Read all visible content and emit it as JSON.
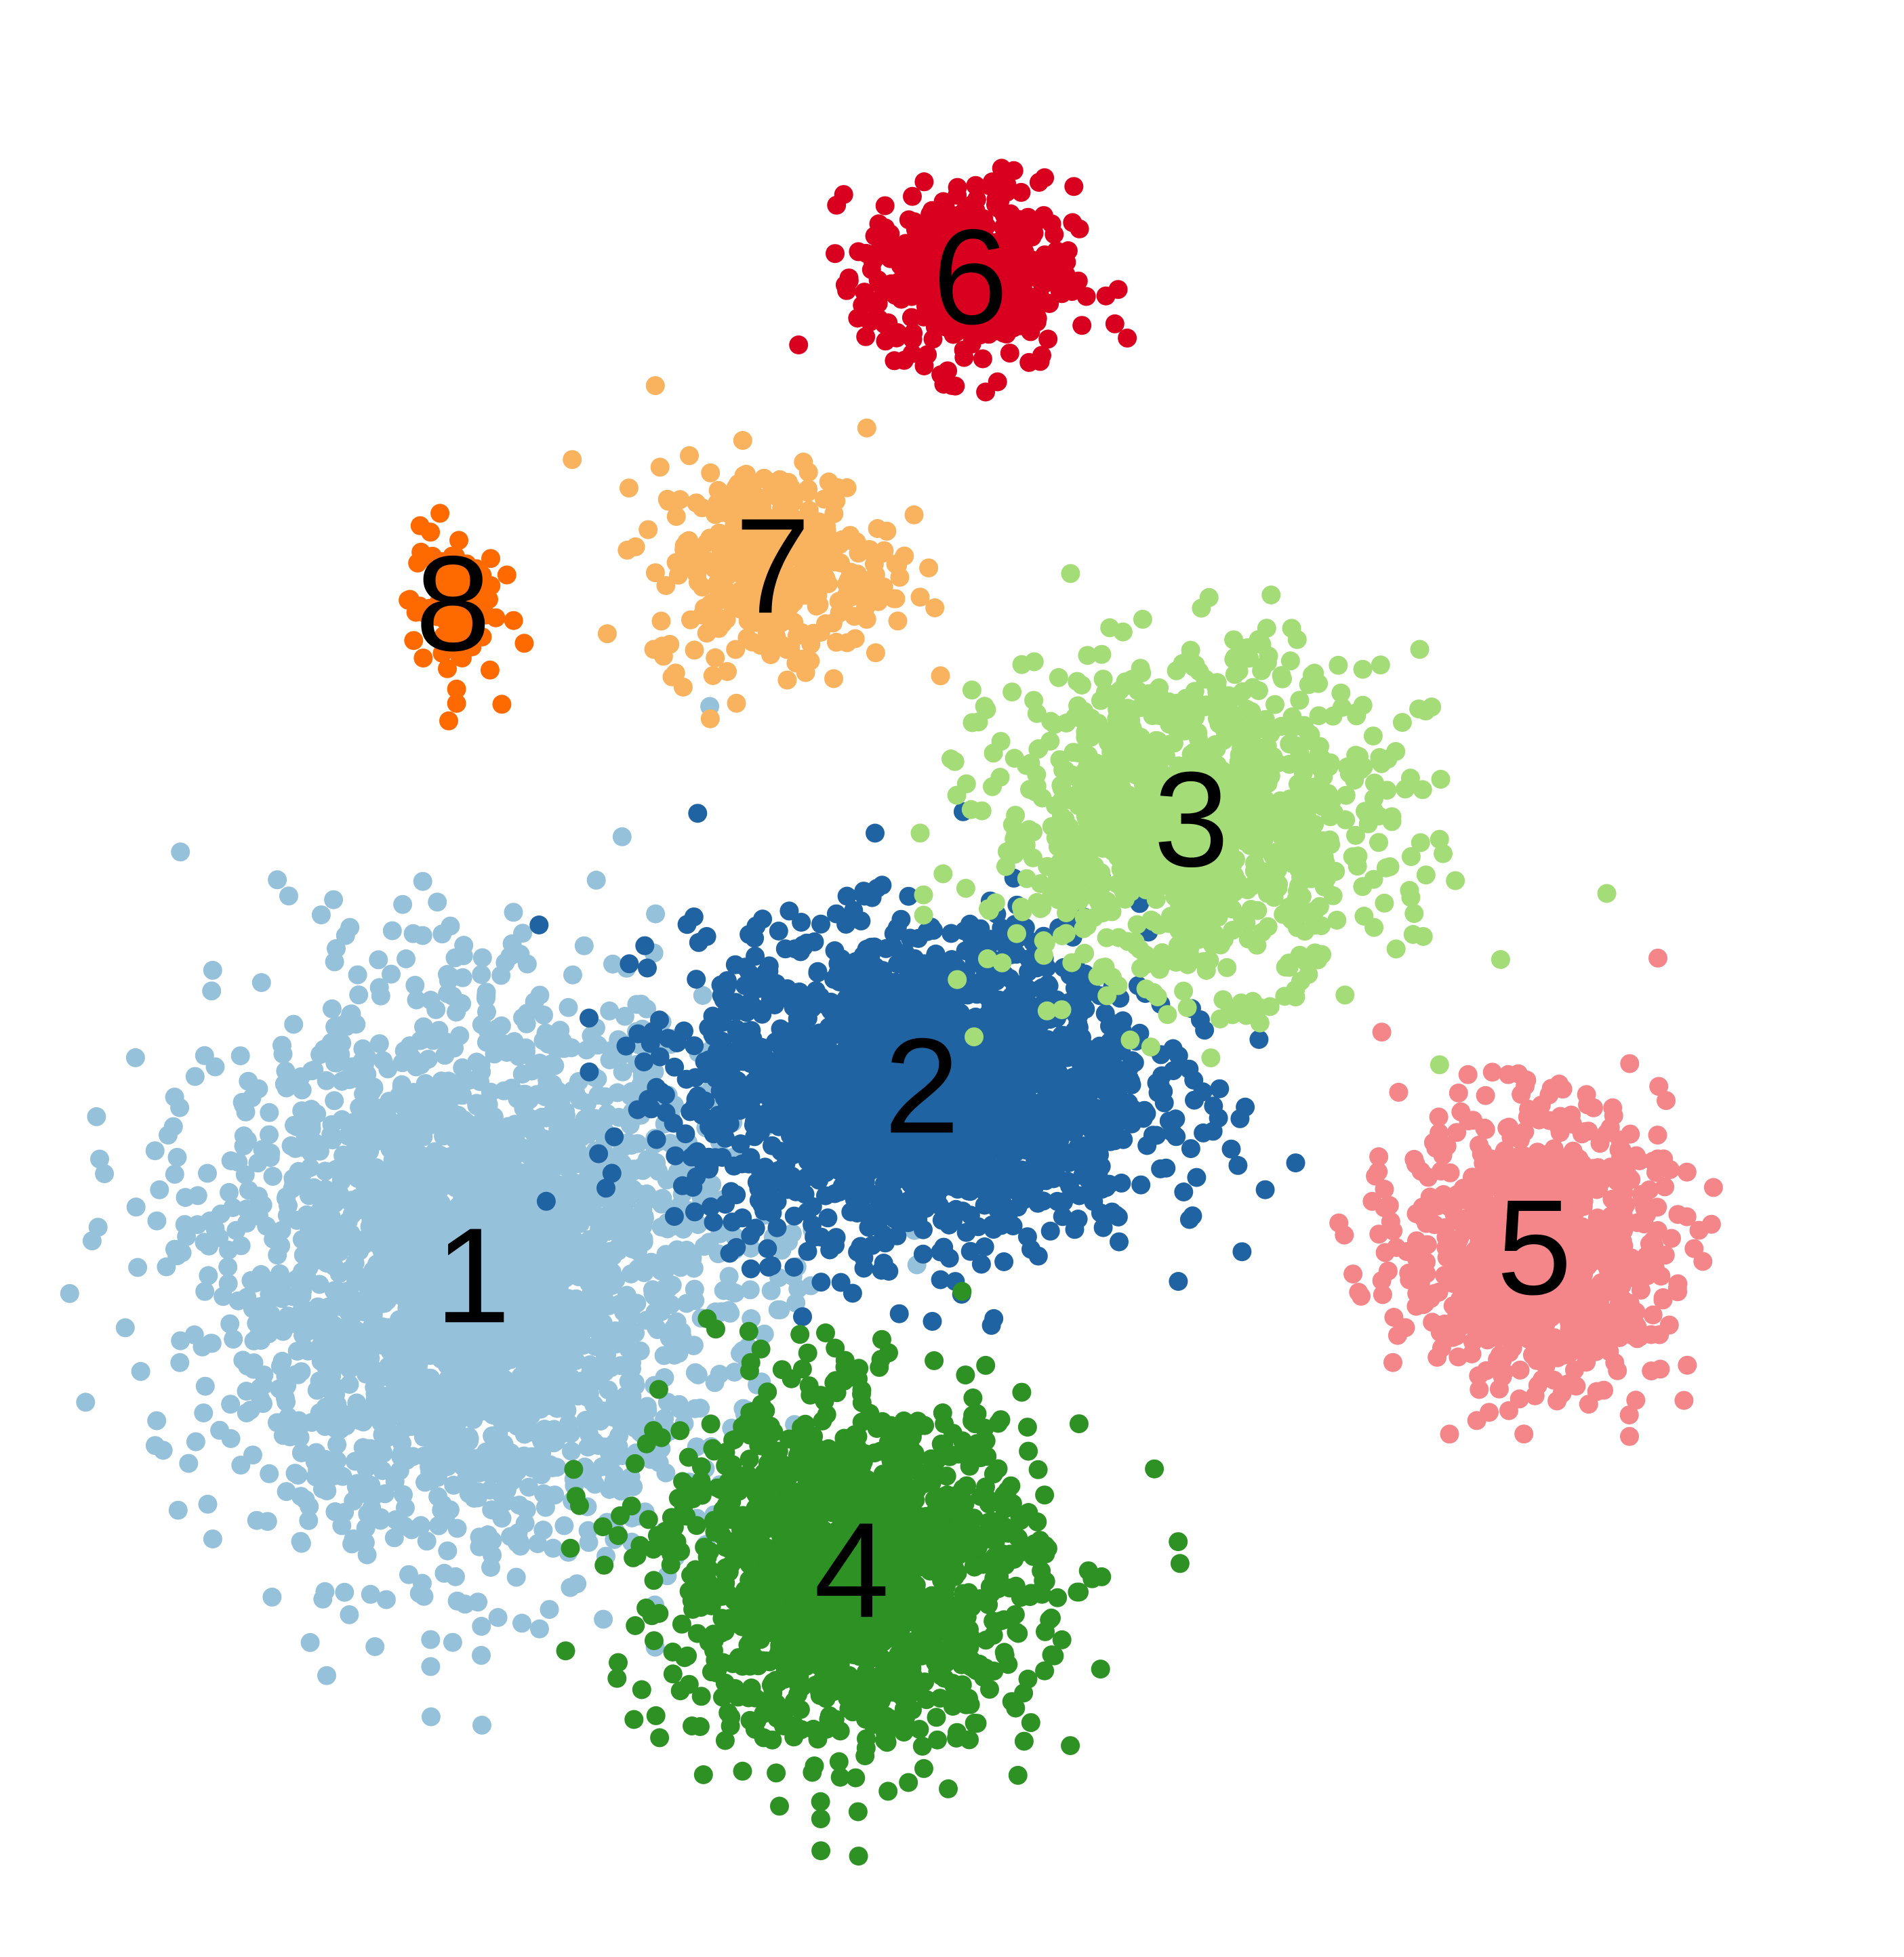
{
  "chart_data": {
    "type": "scatter",
    "title": "",
    "xlabel": "",
    "ylabel": "",
    "axes_visible": false,
    "grid": false,
    "legend": "none",
    "clusters": [
      {
        "label": "1",
        "color": "#96c1db",
        "center": [
          0.233,
          0.342
        ],
        "spread": [
          0.115,
          0.118
        ],
        "weight": 0.3
      },
      {
        "label": "2",
        "color": "#1f63a3",
        "center": [
          0.483,
          0.443
        ],
        "spread": [
          0.105,
          0.068
        ],
        "weight": 0.23
      },
      {
        "label": "3",
        "color": "#a4dc78",
        "center": [
          0.633,
          0.585
        ],
        "spread": [
          0.09,
          0.072
        ],
        "weight": 0.12
      },
      {
        "label": "4",
        "color": "#2d9124",
        "center": [
          0.444,
          0.185
        ],
        "spread": [
          0.085,
          0.075
        ],
        "weight": 0.17
      },
      {
        "label": "5",
        "color": "#f4868a",
        "center": [
          0.824,
          0.357
        ],
        "spread": [
          0.06,
          0.06
        ],
        "weight": 0.1
      },
      {
        "label": "6",
        "color": "#d8001e",
        "center": [
          0.51,
          0.874
        ],
        "spread": [
          0.048,
          0.04
        ],
        "weight": 0.05
      },
      {
        "label": "7",
        "color": "#f9b25d",
        "center": [
          0.4,
          0.72
        ],
        "spread": [
          0.055,
          0.045
        ],
        "weight": 0.04
      },
      {
        "label": "8",
        "color": "#ff6a00",
        "center": [
          0.222,
          0.7
        ],
        "spread": [
          0.02,
          0.035
        ],
        "weight": 0.01
      }
    ],
    "xlim": [
      0,
      1
    ],
    "ylim": [
      0,
      1
    ]
  }
}
